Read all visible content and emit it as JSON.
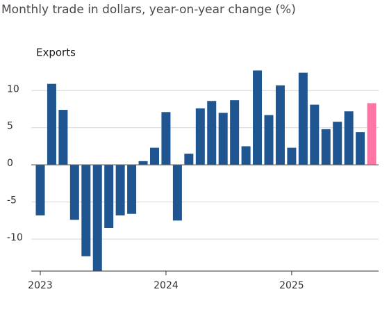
{
  "chart_data": {
    "type": "bar",
    "title": "Monthly trade in dollars, year-on-year change (%)",
    "subtitle": "Exports",
    "categories": [
      "2023",
      null,
      null,
      null,
      null,
      null,
      null,
      null,
      null,
      null,
      null,
      "2024",
      null,
      null,
      null,
      null,
      null,
      null,
      null,
      null,
      null,
      null,
      "2025",
      null,
      null,
      null,
      null,
      null,
      null,
      null
    ],
    "values": [
      -6.8,
      10.9,
      7.4,
      -7.4,
      -12.3,
      -14.3,
      -8.5,
      -6.8,
      -6.6,
      0.5,
      2.3,
      7.1,
      -7.5,
      1.5,
      7.6,
      8.6,
      7.0,
      8.7,
      2.5,
      12.7,
      6.7,
      10.7,
      2.3,
      12.4,
      8.1,
      4.8,
      5.8,
      7.2,
      4.4,
      8.3
    ],
    "colors": [
      "#1f5590",
      "#1f5590",
      "#1f5590",
      "#1f5590",
      "#1f5590",
      "#1f5590",
      "#1f5590",
      "#1f5590",
      "#1f5590",
      "#1f5590",
      "#1f5590",
      "#1f5590",
      "#1f5590",
      "#1f5590",
      "#1f5590",
      "#1f5590",
      "#1f5590",
      "#1f5590",
      "#1f5590",
      "#1f5590",
      "#1f5590",
      "#1f5590",
      "#1f5590",
      "#1f5590",
      "#1f5590",
      "#1f5590",
      "#1f5590",
      "#1f5590",
      "#1f5590",
      "#ff75a6"
    ],
    "ylim": [
      -14.3,
      13.3
    ],
    "yticks": [
      -10,
      -5,
      0,
      5,
      10
    ],
    "grid": true
  }
}
